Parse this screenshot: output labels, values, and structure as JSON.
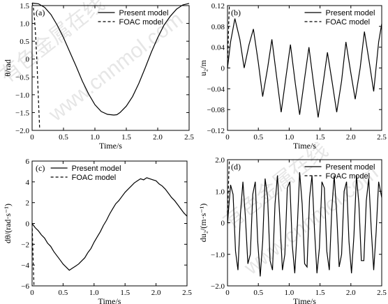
{
  "watermark": [
    "www.cnnmol.com",
    "有色金属在线"
  ],
  "chart_data": [
    {
      "type": "line",
      "panel_label": "(a)",
      "xlabel": "Time/s",
      "ylabel": "θ/rad",
      "xlim": [
        0,
        2.5
      ],
      "ylim": [
        -2.0,
        1.5
      ],
      "xticks": [
        0,
        0.5,
        1.0,
        1.5,
        2.0,
        2.5
      ],
      "xtick_labels": [
        "0",
        "0.5",
        "1.0",
        "1.5",
        "2.0",
        "2.5"
      ],
      "yticks": [
        1.5,
        1.0,
        0.5,
        0,
        -0.5,
        -1.0,
        -1.5,
        -2.0
      ],
      "ytick_labels": [
        "1.5",
        "1.0",
        "0.5",
        "0",
        "−0.5",
        "−1.0",
        "−1.5",
        "−2.0"
      ],
      "legend_position": "top-center",
      "series": [
        {
          "name": "Present model",
          "style": "solid",
          "x": [
            0,
            0.1,
            0.2,
            0.3,
            0.4,
            0.5,
            0.6,
            0.7,
            0.8,
            0.9,
            1.0,
            1.1,
            1.2,
            1.3,
            1.35,
            1.4,
            1.5,
            1.6,
            1.7,
            1.8,
            1.9,
            2.0,
            2.1,
            2.2,
            2.3,
            2.4,
            2.5
          ],
          "y": [
            1.57,
            1.55,
            1.45,
            1.25,
            0.95,
            0.6,
            0.2,
            -0.2,
            -0.62,
            -0.98,
            -1.28,
            -1.47,
            -1.55,
            -1.57,
            -1.56,
            -1.5,
            -1.32,
            -1.05,
            -0.68,
            -0.25,
            0.2,
            0.6,
            0.95,
            1.2,
            1.4,
            1.52,
            1.56
          ]
        },
        {
          "name": "FOAC model",
          "style": "dashed",
          "x": [
            0,
            0.02,
            0.04,
            0.06,
            0.08,
            0.1,
            0.12
          ],
          "y": [
            1.57,
            1.45,
            1.1,
            0.55,
            -0.2,
            -1.1,
            -1.95
          ]
        }
      ]
    },
    {
      "type": "line",
      "panel_label": "(b)",
      "xlabel": "Time/s",
      "ylabel": "u₂/m",
      "xlim": [
        0,
        2.5
      ],
      "ylim": [
        -0.12,
        0.12
      ],
      "xticks": [
        0,
        0.5,
        1.0,
        1.5,
        2.0,
        2.5
      ],
      "xtick_labels": [
        "0",
        "0.5",
        "1.0",
        "1.5",
        "2.0",
        "2.5"
      ],
      "yticks": [
        0.12,
        0.08,
        0.04,
        0,
        -0.04,
        -0.08,
        -0.12
      ],
      "ytick_labels": [
        "0.12",
        "0.08",
        "0.04",
        "0",
        "−0.04",
        "−0.08",
        "−0.12"
      ],
      "legend_position": "top-right",
      "series": [
        {
          "name": "Present model",
          "style": "solid",
          "x": [
            0,
            0.05,
            0.12,
            0.2,
            0.27,
            0.35,
            0.42,
            0.5,
            0.57,
            0.65,
            0.72,
            0.8,
            0.87,
            0.95,
            1.02,
            1.1,
            1.17,
            1.25,
            1.32,
            1.4,
            1.47,
            1.55,
            1.62,
            1.7,
            1.77,
            1.85,
            1.92,
            2.0,
            2.07,
            2.15,
            2.22,
            2.3,
            2.37,
            2.45,
            2.5
          ],
          "y": [
            0,
            0.05,
            0.095,
            0.055,
            0.0,
            0.045,
            0.075,
            0.01,
            -0.055,
            0.0,
            0.055,
            -0.02,
            -0.085,
            -0.015,
            0.045,
            -0.03,
            -0.09,
            -0.02,
            0.04,
            -0.035,
            -0.095,
            -0.03,
            0.03,
            -0.03,
            -0.085,
            -0.025,
            0.05,
            -0.01,
            -0.06,
            0.0,
            0.07,
            0.01,
            -0.045,
            0.05,
            0.085
          ]
        },
        {
          "name": "FOAC model",
          "style": "dashed",
          "x": [
            0,
            0.01,
            0.02,
            0.03
          ],
          "y": [
            0,
            0.04,
            0.09,
            0.12
          ]
        }
      ]
    },
    {
      "type": "line",
      "panel_label": "(c)",
      "xlabel": "Time/s",
      "ylabel": "dθ/(rad·s⁻¹)",
      "xlim": [
        0,
        2.5
      ],
      "ylim": [
        -6,
        6
      ],
      "xticks": [
        0,
        0.5,
        1.0,
        1.5,
        2.0,
        2.5
      ],
      "xtick_labels": [
        "0",
        "0.5",
        "1.0",
        "1.5",
        "2.0",
        "2.5"
      ],
      "yticks": [
        6,
        4,
        2,
        0,
        -2,
        -4,
        -6
      ],
      "ytick_labels": [
        "6",
        "4",
        "2",
        "0",
        "−2",
        "−4",
        "−6"
      ],
      "legend_position": "top-left",
      "series": [
        {
          "name": "Present model",
          "style": "solid",
          "x": [
            0,
            0.05,
            0.1,
            0.15,
            0.2,
            0.25,
            0.3,
            0.35,
            0.4,
            0.45,
            0.5,
            0.55,
            0.6,
            0.65,
            0.7,
            0.75,
            0.8,
            0.85,
            0.9,
            0.95,
            1.0,
            1.05,
            1.1,
            1.15,
            1.2,
            1.25,
            1.3,
            1.35,
            1.4,
            1.45,
            1.5,
            1.55,
            1.6,
            1.65,
            1.7,
            1.75,
            1.8,
            1.85,
            1.9,
            1.95,
            2.0,
            2.05,
            2.1,
            2.15,
            2.2,
            2.25,
            2.3,
            2.35,
            2.4,
            2.45,
            2.5
          ],
          "y": [
            0,
            -0.4,
            -0.7,
            -1.1,
            -1.4,
            -1.9,
            -2.2,
            -2.7,
            -3.1,
            -3.5,
            -3.9,
            -4.2,
            -4.5,
            -4.3,
            -4.1,
            -3.9,
            -3.6,
            -3.3,
            -2.8,
            -2.4,
            -1.8,
            -1.3,
            -0.8,
            -0.2,
            0.3,
            0.9,
            1.4,
            1.9,
            2.2,
            2.6,
            3.0,
            3.3,
            3.6,
            3.9,
            4.1,
            4.3,
            4.2,
            4.4,
            4.3,
            4.2,
            4.1,
            3.8,
            3.6,
            3.3,
            2.9,
            2.5,
            2.2,
            1.8,
            1.4,
            1.0,
            0.7
          ]
        },
        {
          "name": "FOAC model",
          "style": "dashed",
          "x": [
            0,
            0.01,
            0.02,
            0.03
          ],
          "y": [
            0,
            -2.0,
            -4.2,
            -6.0
          ]
        }
      ]
    },
    {
      "type": "line",
      "panel_label": "(d)",
      "xlabel": "Time/s",
      "ylabel": "du₂/(m·s⁻¹)",
      "xlim": [
        0,
        2.5
      ],
      "ylim": [
        -2.0,
        2.0
      ],
      "xticks": [
        0,
        0.5,
        1.0,
        1.5,
        2.0,
        2.5
      ],
      "xtick_labels": [
        "0",
        "0.5",
        "1.0",
        "1.5",
        "2.0",
        "2.5"
      ],
      "yticks": [
        2.0,
        1.0,
        0,
        -1.0,
        -2.0
      ],
      "ytick_labels": [
        "2.0",
        "1.0",
        "0",
        "−1.0",
        "−2.0"
      ],
      "legend_position": "top-right",
      "series": [
        {
          "name": "Present model",
          "style": "solid",
          "x": [
            0,
            0.05,
            0.09,
            0.13,
            0.17,
            0.21,
            0.25,
            0.29,
            0.33,
            0.37,
            0.41,
            0.45,
            0.49,
            0.53,
            0.57,
            0.61,
            0.65,
            0.69,
            0.73,
            0.77,
            0.81,
            0.85,
            0.89,
            0.93,
            0.97,
            1.01,
            1.05,
            1.09,
            1.13,
            1.17,
            1.21,
            1.25,
            1.29,
            1.33,
            1.37,
            1.41,
            1.45,
            1.49,
            1.53,
            1.57,
            1.61,
            1.65,
            1.69,
            1.73,
            1.77,
            1.81,
            1.85,
            1.89,
            1.93,
            1.97,
            2.01,
            2.05,
            2.09,
            2.13,
            2.17,
            2.21,
            2.25,
            2.29,
            2.33,
            2.37,
            2.41,
            2.45,
            2.5
          ],
          "y": [
            0,
            1.2,
            0.9,
            -0.9,
            -1.5,
            0.3,
            1.3,
            0.2,
            -1.3,
            -1.0,
            0.9,
            1.3,
            -0.6,
            -1.7,
            -0.6,
            1.4,
            0.8,
            -1.2,
            -1.5,
            0.6,
            1.5,
            0.1,
            -1.5,
            -1.0,
            1.1,
            1.3,
            -0.7,
            -1.6,
            -0.2,
            1.6,
            0.6,
            -1.3,
            -1.4,
            0.8,
            1.5,
            -0.2,
            -1.6,
            -0.8,
            1.3,
            1.1,
            -0.9,
            -1.5,
            0.4,
            1.5,
            0.3,
            -1.4,
            -1.0,
            1.0,
            1.3,
            -0.6,
            -1.6,
            -0.4,
            1.5,
            0.6,
            -1.2,
            -1.2,
            0.7,
            1.4,
            -0.2,
            -1.5,
            -0.3,
            1.3,
            0.8
          ]
        },
        {
          "name": "FOAC model",
          "style": "dashed",
          "x": [
            0,
            0.01,
            0.02,
            0.03
          ],
          "y": [
            0,
            0.8,
            1.5,
            2.0
          ]
        }
      ]
    }
  ]
}
